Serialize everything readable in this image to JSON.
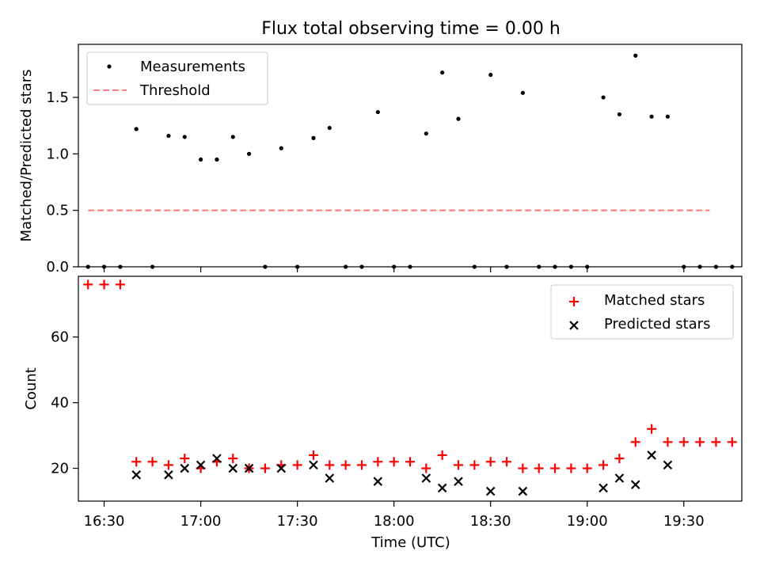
{
  "title": "Flux total observing time = 0.00 h",
  "colors": {
    "matched": "#ff0000",
    "predicted": "#000000",
    "threshold": "#ff7f7f",
    "measurement": "#000000"
  },
  "x_ticks": [
    {
      "t": 30,
      "label": "16:30"
    },
    {
      "t": 60,
      "label": "17:00"
    },
    {
      "t": 90,
      "label": "17:30"
    },
    {
      "t": 120,
      "label": "18:00"
    },
    {
      "t": 150,
      "label": "18:30"
    },
    {
      "t": 180,
      "label": "19:00"
    },
    {
      "t": 210,
      "label": "19:30"
    }
  ],
  "chart_data": [
    {
      "type": "scatter",
      "ylabel": "Matched/Predicted stars",
      "x_unit": "minutes after 16:00 UTC",
      "xlim": [
        22,
        228
      ],
      "ylim": [
        0,
        1.97
      ],
      "yticks": [
        {
          "v": 0.0,
          "label": "0.0"
        },
        {
          "v": 0.5,
          "label": "0.5"
        },
        {
          "v": 1.0,
          "label": "1.0"
        },
        {
          "v": 1.5,
          "label": "1.5"
        }
      ],
      "legend_position": "top-left",
      "series": [
        {
          "name": "Measurements",
          "x": [
            25,
            30,
            35,
            40,
            45,
            50,
            55,
            60,
            65,
            70,
            75,
            80,
            85,
            90,
            95,
            100,
            105,
            110,
            115,
            120,
            125,
            130,
            135,
            140,
            145,
            150,
            155,
            160,
            165,
            170,
            175,
            180,
            185,
            190,
            195,
            200,
            205,
            210,
            215,
            220,
            225
          ],
          "y": [
            0,
            0,
            0,
            1.22,
            0,
            1.16,
            1.15,
            0.95,
            0.95,
            1.15,
            1.0,
            0,
            1.05,
            0,
            1.14,
            1.23,
            0,
            0,
            1.37,
            0,
            0,
            1.18,
            1.72,
            1.31,
            0,
            1.7,
            0,
            1.54,
            0,
            0,
            0,
            0,
            1.5,
            1.35,
            1.87,
            1.33,
            1.33,
            0,
            0,
            0,
            0
          ]
        },
        {
          "name": "Threshold",
          "style": "dashed",
          "x": [
            25,
            218
          ],
          "y": [
            0.5,
            0.5
          ]
        }
      ]
    },
    {
      "type": "scatter",
      "ylabel": "Count",
      "xlabel": "Time (UTC)",
      "xlim": [
        22,
        228
      ],
      "ylim": [
        10,
        78.5
      ],
      "yticks": [
        {
          "v": 20,
          "label": "20"
        },
        {
          "v": 40,
          "label": "40"
        },
        {
          "v": 60,
          "label": "60"
        }
      ],
      "legend_position": "top-right",
      "series": [
        {
          "name": "Matched stars",
          "x": [
            25,
            30,
            35,
            40,
            45,
            50,
            55,
            60,
            65,
            70,
            75,
            80,
            85,
            90,
            95,
            100,
            105,
            110,
            115,
            120,
            125,
            130,
            135,
            140,
            145,
            150,
            155,
            160,
            165,
            170,
            175,
            180,
            185,
            190,
            195,
            200,
            205,
            210,
            215,
            220,
            225
          ],
          "y": [
            76,
            76,
            76,
            22,
            22,
            21,
            23,
            20,
            22,
            23,
            20,
            20,
            21,
            21,
            24,
            21,
            21,
            21,
            22,
            22,
            22,
            20,
            24,
            21,
            21,
            22,
            22,
            20,
            20,
            20,
            20,
            20,
            21,
            23,
            28,
            32,
            28,
            28,
            28,
            28,
            28
          ]
        },
        {
          "name": "Predicted stars",
          "x": [
            40,
            50,
            55,
            60,
            65,
            70,
            75,
            85,
            95,
            100,
            115,
            130,
            135,
            140,
            150,
            160,
            185,
            190,
            195,
            200,
            205
          ],
          "y": [
            18,
            18,
            20,
            21,
            23,
            20,
            20,
            20,
            21,
            17,
            16,
            17,
            14,
            16,
            13,
            13,
            14,
            17,
            15,
            24,
            21
          ]
        }
      ]
    }
  ]
}
